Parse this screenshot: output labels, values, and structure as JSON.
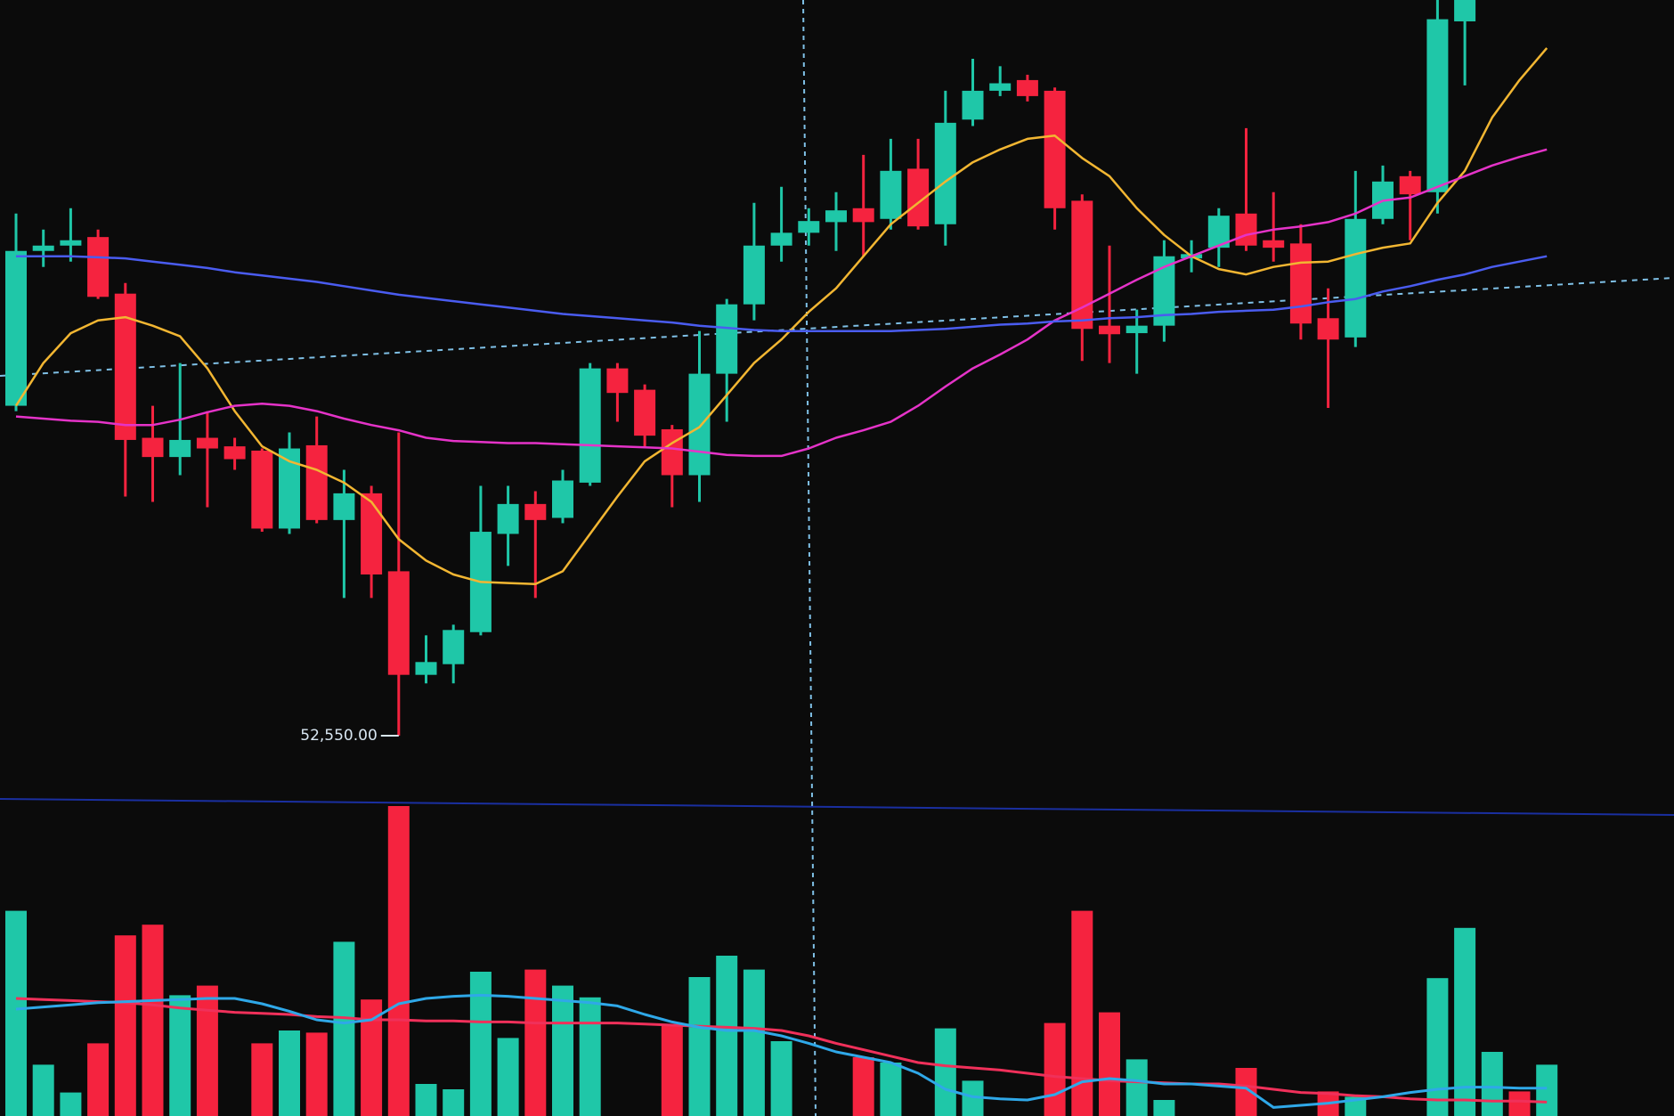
{
  "chart_data": {
    "type": "candlestick",
    "open": [
      55640,
      57090,
      57140,
      57220,
      56690,
      55340,
      55160,
      55340,
      55260,
      55220,
      54490,
      55270,
      54570,
      54820,
      54090,
      53120,
      53220,
      53520,
      54440,
      54720,
      54590,
      54920,
      55990,
      55790,
      55420,
      54990,
      55940,
      56590,
      57140,
      57260,
      57360,
      57490,
      57390,
      57860,
      57340,
      58320,
      58590,
      58690,
      58590,
      57560,
      56390,
      56320,
      56390,
      57020,
      57120,
      57440,
      57190,
      57160,
      56460,
      56280,
      57390,
      57790,
      57640,
      59240,
      null,
      null,
      null
    ],
    "high": [
      57440,
      57290,
      57490,
      57290,
      56790,
      55640,
      56040,
      55590,
      55340,
      55240,
      55390,
      55540,
      55040,
      54890,
      55390,
      53490,
      53590,
      54890,
      54890,
      54840,
      55040,
      56040,
      56040,
      55840,
      55460,
      56340,
      56640,
      57540,
      57690,
      57490,
      57640,
      57990,
      58140,
      58140,
      58590,
      58890,
      58820,
      58740,
      58620,
      57620,
      57140,
      56540,
      57190,
      57190,
      57490,
      58240,
      57640,
      57340,
      56740,
      57840,
      57890,
      57840,
      59440,
      59440,
      null,
      null,
      null
    ],
    "low": [
      55590,
      56940,
      56990,
      56640,
      54790,
      54740,
      54990,
      54690,
      55040,
      54460,
      54440,
      54540,
      53840,
      53840,
      52550,
      53040,
      53040,
      53490,
      54140,
      53840,
      54540,
      54890,
      55490,
      55240,
      54690,
      54740,
      55490,
      56440,
      56990,
      57140,
      57090,
      57040,
      57290,
      57290,
      57140,
      58260,
      58540,
      58490,
      57290,
      56060,
      56040,
      55940,
      56240,
      56890,
      56940,
      57090,
      56990,
      56260,
      55620,
      56190,
      57340,
      57190,
      57440,
      58640,
      null,
      null,
      null
    ],
    "close": [
      57090,
      57140,
      57190,
      56660,
      55320,
      55160,
      55320,
      55240,
      55140,
      54490,
      55240,
      54570,
      54820,
      54060,
      53120,
      53240,
      53540,
      54460,
      54720,
      54570,
      54940,
      55990,
      55760,
      55360,
      54990,
      55940,
      56590,
      57140,
      57260,
      57370,
      57470,
      57360,
      57840,
      57320,
      58290,
      58590,
      58660,
      58540,
      57490,
      56360,
      56310,
      56390,
      57040,
      57060,
      57420,
      57140,
      57120,
      56410,
      56260,
      57390,
      57740,
      57620,
      59260,
      59440,
      null,
      null,
      null
    ],
    "direction": [
      "up",
      "up",
      "up",
      "down",
      "down",
      "down",
      "up",
      "down",
      "down",
      "down",
      "up",
      "down",
      "up",
      "down",
      "down",
      "up",
      "up",
      "up",
      "up",
      "down",
      "up",
      "up",
      "down",
      "down",
      "down",
      "up",
      "up",
      "up",
      "up",
      "up",
      "up",
      "down",
      "up",
      "down",
      "up",
      "up",
      "up",
      "down",
      "down",
      "down",
      "down",
      "up",
      "up",
      "up",
      "up",
      "down",
      "down",
      "down",
      "down",
      "up",
      "up",
      "down",
      "up",
      "up",
      "up",
      "down",
      "up"
    ],
    "volume": [
      192,
      48,
      22,
      68,
      169,
      179,
      113,
      122,
      null,
      68,
      80,
      78,
      163,
      109,
      290,
      30,
      25,
      135,
      73,
      137,
      122,
      111,
      null,
      null,
      85,
      130,
      150,
      137,
      70,
      null,
      null,
      55,
      50,
      null,
      82,
      33,
      null,
      null,
      87,
      192,
      97,
      53,
      15,
      null,
      null,
      45,
      null,
      null,
      23,
      18,
      null,
      null,
      129,
      176,
      60,
      23,
      48
    ],
    "ylim": [
      52300,
      59440
    ],
    "volume_ylim": [
      0,
      300
    ],
    "up_color": "#1fc7a8",
    "down_color": "#f5233f",
    "moving_averages": [
      {
        "color": "#f2b632",
        "values": [
          55640,
          56040,
          56320,
          56440,
          56470,
          56390,
          56290,
          55990,
          55590,
          55260,
          55120,
          55040,
          54920,
          54740,
          54390,
          54190,
          54060,
          53990,
          53980,
          53970,
          54090,
          54440,
          54790,
          55120,
          55290,
          55440,
          55740,
          56040,
          56260,
          56520,
          56740,
          57040,
          57340,
          57540,
          57740,
          57920,
          58040,
          58140,
          58170,
          57960,
          57790,
          57490,
          57240,
          57040,
          56920,
          56870,
          56940,
          56980,
          56990,
          57060,
          57120,
          57160,
          57540,
          57840,
          58340,
          58690,
          58990
        ]
      },
      {
        "color": "#e533c8",
        "values": [
          55540,
          55520,
          55500,
          55490,
          55460,
          55460,
          55510,
          55580,
          55640,
          55660,
          55640,
          55590,
          55520,
          55460,
          55410,
          55340,
          55310,
          55300,
          55290,
          55290,
          55280,
          55270,
          55260,
          55250,
          55240,
          55210,
          55180,
          55170,
          55170,
          55240,
          55340,
          55410,
          55490,
          55640,
          55820,
          55990,
          56120,
          56260,
          56440,
          56560,
          56690,
          56820,
          56940,
          57040,
          57140,
          57240,
          57290,
          57320,
          57360,
          57440,
          57560,
          57590,
          57690,
          57790,
          57890,
          57970,
          58040
        ]
      },
      {
        "color": "#4a5cf0",
        "values": [
          57040,
          57040,
          57040,
          57030,
          57020,
          56990,
          56960,
          56930,
          56890,
          56860,
          56830,
          56800,
          56760,
          56720,
          56680,
          56650,
          56620,
          56590,
          56560,
          56530,
          56500,
          56480,
          56460,
          56440,
          56420,
          56390,
          56370,
          56350,
          56340,
          56340,
          56340,
          56340,
          56340,
          56350,
          56360,
          56380,
          56400,
          56410,
          56430,
          56440,
          56460,
          56470,
          56490,
          56500,
          56520,
          56530,
          56540,
          56570,
          56610,
          56640,
          56710,
          56760,
          56820,
          56870,
          56940,
          56990,
          57040
        ]
      }
    ],
    "volume_moving_averages": [
      {
        "color": "#f0305a",
        "values": [
          110,
          109,
          108,
          107,
          106,
          104,
          101,
          99,
          97,
          96,
          95,
          93,
          92,
          90,
          90,
          89,
          89,
          88,
          88,
          87,
          87,
          87,
          87,
          86,
          85,
          84,
          83,
          82,
          80,
          75,
          68,
          62,
          56,
          50,
          47,
          45,
          43,
          40,
          37,
          35,
          33,
          32,
          31,
          30,
          30,
          28,
          25,
          22,
          21,
          19,
          18,
          16,
          15,
          15,
          14,
          14,
          13
        ]
      },
      {
        "color": "#2fa8e8",
        "values": [
          100,
          102,
          104,
          106,
          107,
          108,
          109,
          110,
          110,
          105,
          98,
          90,
          87,
          90,
          105,
          110,
          112,
          113,
          112,
          110,
          108,
          106,
          103,
          95,
          88,
          83,
          80,
          80,
          75,
          68,
          60,
          55,
          50,
          40,
          25,
          18,
          16,
          15,
          20,
          32,
          35,
          33,
          30,
          30,
          28,
          26,
          8,
          10,
          12,
          15,
          18,
          22,
          25,
          27,
          27,
          26,
          26
        ]
      }
    ],
    "low_label": {
      "value": 52550,
      "label": "52,550.00"
    }
  }
}
